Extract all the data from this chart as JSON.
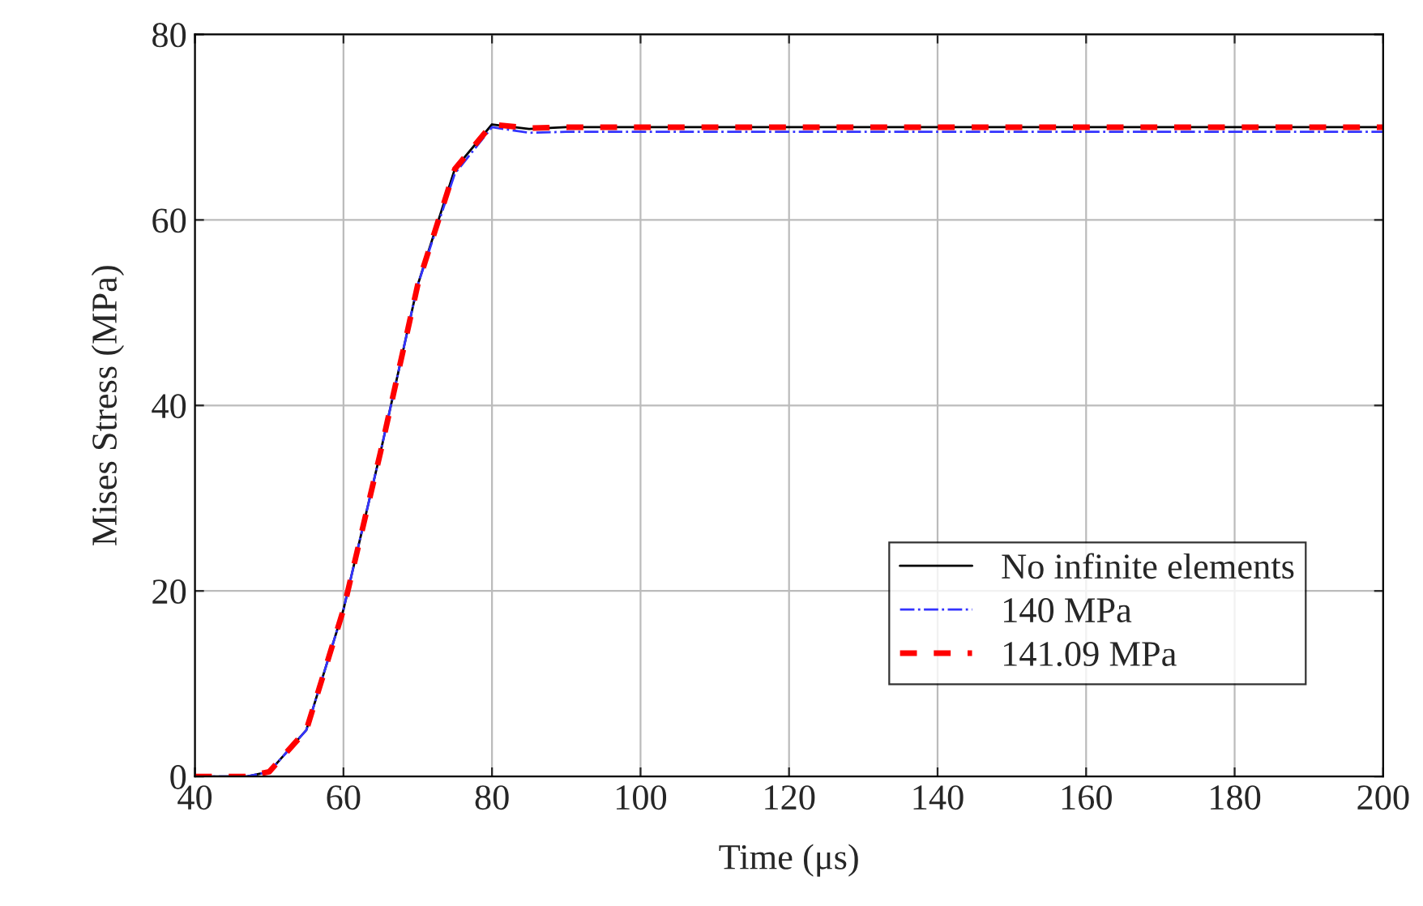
{
  "chart_data": {
    "type": "line",
    "xlabel": "Time (μs)",
    "ylabel": "Mises Stress (MPa)",
    "xlim": [
      40,
      200
    ],
    "xticks": [
      40,
      60,
      80,
      100,
      120,
      140,
      160,
      180,
      200
    ],
    "ylim": [
      0,
      80
    ],
    "yticks": [
      0,
      20,
      40,
      60,
      80
    ],
    "grid": true,
    "legend": "bottom right",
    "marker": "none",
    "series": [
      {
        "name": "No infinite elements",
        "color": "#000000",
        "line_style": "solid",
        "x": [
          40,
          47,
          50,
          55,
          60,
          65,
          70,
          75,
          80,
          85,
          90,
          200
        ],
        "values": [
          0,
          0,
          0.5,
          5,
          18,
          35,
          53,
          65.5,
          70.3,
          69.8,
          70,
          70
        ]
      },
      {
        "name": "140 MPa",
        "color": "#3333ff",
        "line_style": "dashdot",
        "x": [
          40,
          47,
          50,
          55,
          60,
          65,
          70,
          75,
          80,
          85,
          90,
          100,
          200
        ],
        "values": [
          0,
          0,
          0.5,
          5,
          18,
          35,
          53,
          65,
          70,
          69.4,
          69.5,
          69.5,
          69.5
        ]
      },
      {
        "name": "141.09 MPa",
        "color": "#ff0000",
        "line_style": "dashed",
        "x": [
          40,
          47,
          50,
          55,
          60,
          65,
          70,
          75,
          80,
          85,
          90,
          100,
          200
        ],
        "values": [
          0,
          0,
          0.5,
          5,
          18,
          35,
          53,
          65.5,
          70.3,
          69.9,
          70,
          70,
          70
        ]
      }
    ]
  }
}
